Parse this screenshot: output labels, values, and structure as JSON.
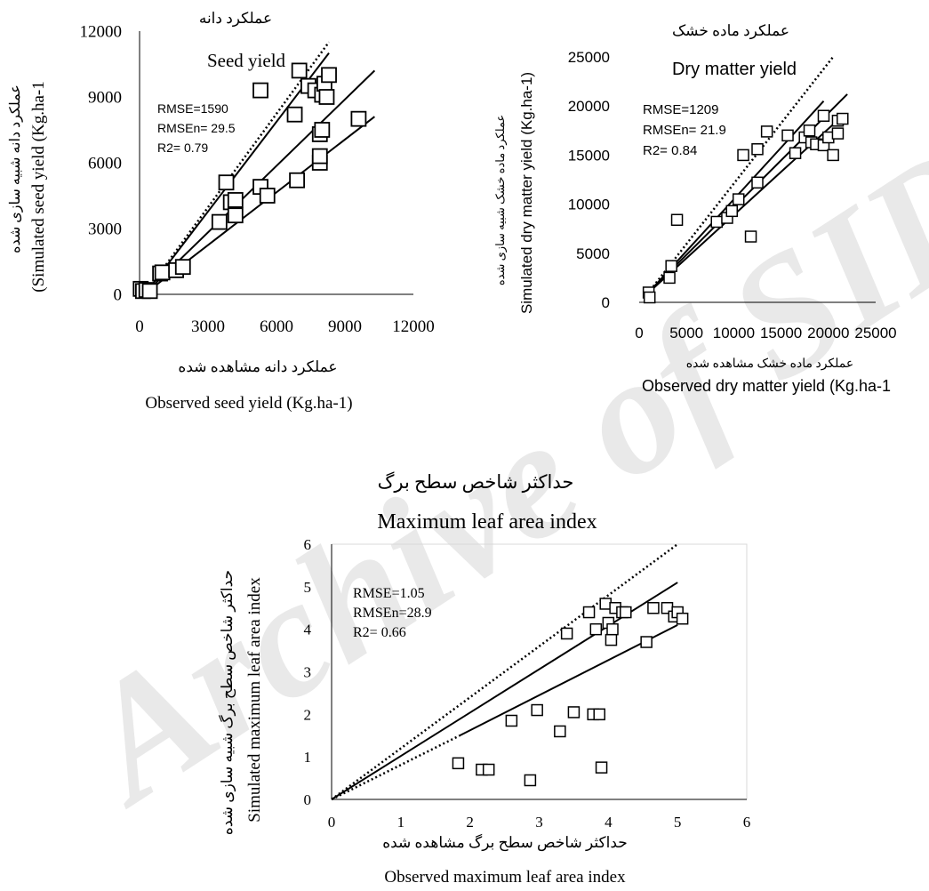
{
  "watermark": {
    "text": "Archive of SID",
    "color": "#e9e9e9"
  },
  "chart_data": [
    {
      "type": "scatter",
      "title_fa": "عملکرد دانه",
      "title": "Seed yield",
      "xlabel_fa": "عملکرد دانه  مشاهده شده",
      "xlabel": "Observed seed yield (Kg.ha-1)",
      "ylabel_fa": "عملکرد دانه  شبیه سازی  شده",
      "ylabel": "(Simulated seed yield (Kg.ha-1",
      "xlim": [
        0,
        12000
      ],
      "ylim": [
        0,
        12000
      ],
      "xticks": [
        "0",
        "3000",
        "6000",
        "9000",
        "12000"
      ],
      "yticks": [
        "0",
        "3000",
        "6000",
        "9000",
        "12000"
      ],
      "stats": [
        "RMSE=1590",
        "RMSEn= 29.5",
        "R2= 0.79"
      ],
      "x": [
        50,
        150,
        300,
        450,
        900,
        1000,
        1600,
        1900,
        3500,
        3800,
        4000,
        4200,
        4200,
        5300,
        5300,
        5600,
        6800,
        6900,
        7000,
        7400,
        7700,
        7900,
        7900,
        7900,
        8000,
        8000,
        8100,
        8200,
        8300,
        9600
      ],
      "y": [
        250,
        150,
        200,
        150,
        950,
        1000,
        1100,
        1250,
        3300,
        5100,
        4200,
        3600,
        4300,
        9300,
        4900,
        4500,
        8200,
        5200,
        10200,
        9500,
        9300,
        6000,
        6300,
        7300,
        7500,
        9100,
        9600,
        9000,
        10000,
        8000
      ],
      "lines": [
        {
          "style": "dotted",
          "x": [
            700,
            8300
          ],
          "y": [
            700,
            11500
          ]
        },
        {
          "style": "solid",
          "x": [
            450,
            8300
          ],
          "y": [
            300,
            11000
          ]
        },
        {
          "style": "solid",
          "x": [
            450,
            10300
          ],
          "y": [
            250,
            10200
          ]
        },
        {
          "style": "solid",
          "x": [
            700,
            10300
          ],
          "y": [
            400,
            8100
          ]
        }
      ]
    },
    {
      "type": "scatter",
      "title_fa": "عملکرد ماده خشک",
      "title": "Dry matter  yield",
      "xlabel_fa": "عملکرد ماده خشک مشاهده شده",
      "xlabel": "Observed dry matter yield (Kg.ha-1",
      "ylabel_fa": "عملکرد ماده خشک شبیه سازی  شده",
      "ylabel": "Simulated dry matter yield (Kg.ha-1)",
      "xlim": [
        0,
        25000
      ],
      "ylim": [
        0,
        25000
      ],
      "xticks": [
        "0",
        "5000",
        "10000",
        "15000",
        "20000",
        "25000"
      ],
      "yticks": [
        "0",
        "5000",
        "10000",
        "15000",
        "20000",
        "25000"
      ],
      "stats": [
        "RMSE=1209",
        "RMSEn= 21.9",
        "R2= 0.84"
      ],
      "x": [
        1000,
        1100,
        3200,
        3400,
        4000,
        8200,
        9300,
        9800,
        10500,
        11000,
        11800,
        12500,
        12500,
        13500,
        15700,
        16500,
        17500,
        18000,
        18200,
        18700,
        19500,
        19500,
        20000,
        20500,
        21000,
        21000,
        21500
      ],
      "y": [
        1000,
        500,
        2500,
        3700,
        8400,
        8200,
        8600,
        9300,
        10500,
        15000,
        6700,
        12200,
        15600,
        17400,
        17000,
        15200,
        16800,
        17500,
        16300,
        16100,
        19000,
        16000,
        16800,
        15000,
        18500,
        17200,
        18700
      ],
      "lines": [
        {
          "style": "dotted",
          "x": [
            900,
            20500
          ],
          "y": [
            900,
            25000
          ]
        },
        {
          "style": "solid",
          "x": [
            900,
            19500
          ],
          "y": [
            900,
            20500
          ]
        },
        {
          "style": "solid",
          "x": [
            900,
            22000
          ],
          "y": [
            900,
            21200
          ]
        },
        {
          "style": "solid",
          "x": [
            900,
            21500
          ],
          "y": [
            900,
            19000
          ]
        }
      ]
    },
    {
      "type": "scatter",
      "title_fa": "حداکثر شاخص سطح برگ",
      "title": "Maximum leaf area index",
      "xlabel_fa": "حداکثر شاخص سطح برگ مشاهده شده",
      "xlabel": "Observed maximum  leaf area index",
      "ylabel_fa": "حداکثر شاخص سطح برگ شبیه سازی  شده",
      "ylabel": "Simulated maximum  leaf area index",
      "xlim": [
        0,
        6
      ],
      "ylim": [
        0,
        6
      ],
      "xticks": [
        "0",
        "1",
        "2",
        "3",
        "4",
        "5",
        "6"
      ],
      "yticks": [
        "0",
        "1",
        "2",
        "3",
        "4",
        "5",
        "6"
      ],
      "stats": [
        "RMSE=1.05",
        "RMSEn=28.9",
        "R2= 0.66"
      ],
      "x": [
        1.83,
        2.17,
        2.27,
        2.6,
        2.87,
        2.97,
        3.3,
        3.4,
        3.5,
        3.72,
        3.78,
        3.82,
        3.87,
        3.9,
        3.96,
        4.0,
        4.04,
        4.06,
        4.1,
        4.2,
        4.25,
        4.55,
        4.65,
        4.85,
        4.95,
        5.0,
        5.07
      ],
      "y": [
        0.85,
        0.7,
        0.7,
        1.85,
        0.45,
        2.1,
        1.6,
        3.9,
        2.05,
        4.4,
        2.0,
        4.0,
        2.0,
        0.75,
        4.6,
        4.15,
        3.75,
        4.0,
        4.5,
        4.4,
        4.4,
        3.7,
        4.5,
        4.5,
        4.3,
        4.4,
        4.25
      ],
      "lines": [
        {
          "style": "dotted",
          "x": [
            0,
            5
          ],
          "y": [
            0,
            6
          ]
        },
        {
          "style": "solid",
          "x": [
            0,
            5
          ],
          "y": [
            0,
            5.1
          ]
        },
        {
          "style": "solid",
          "x": [
            1.85,
            5
          ],
          "y": [
            1.5,
            4.1
          ]
        },
        {
          "style": "dotted",
          "x": [
            0,
            1.85
          ],
          "y": [
            0,
            1.5
          ]
        }
      ]
    }
  ]
}
